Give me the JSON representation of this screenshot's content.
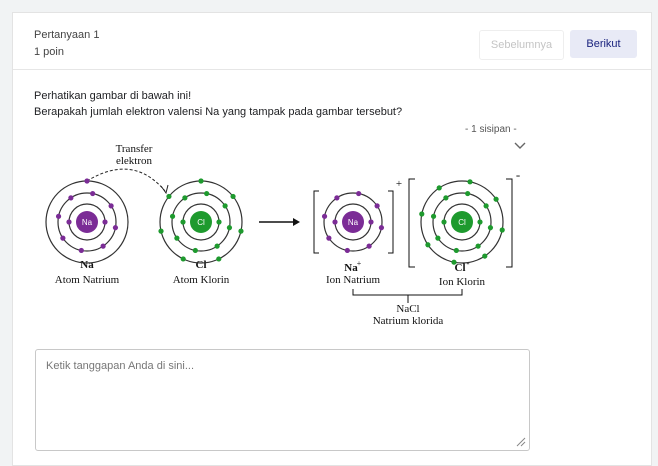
{
  "header": {
    "title": "Pertanyaan 1",
    "points": "1 poin"
  },
  "buttons": {
    "previous": "Sebelumnya",
    "next": "Berikut"
  },
  "question": {
    "lines": [
      "Perhatikan gambar di bawah ini!",
      "Berapakah jumlah elektron valensi Na yang tampak pada gambar tersebut?"
    ],
    "blank_label": "- 1 sisipan -"
  },
  "diagram": {
    "transfer_label": [
      "Transfer",
      "elektron"
    ],
    "atoms": [
      {
        "symbol": "Na",
        "name": "Atom Natrium"
      },
      {
        "symbol": "Cl",
        "name": "Atom Klorin"
      }
    ],
    "ions": [
      {
        "symbol": "Na",
        "charge": "+",
        "name": "Ion Natrium"
      },
      {
        "symbol": "Cl",
        "charge": "-",
        "name": "Ion Klorin"
      }
    ],
    "compound": {
      "formula": "NaCl",
      "name": "Natrium klorida"
    }
  },
  "answer": {
    "placeholder": "Ketik tanggapan Anda di sini..."
  }
}
